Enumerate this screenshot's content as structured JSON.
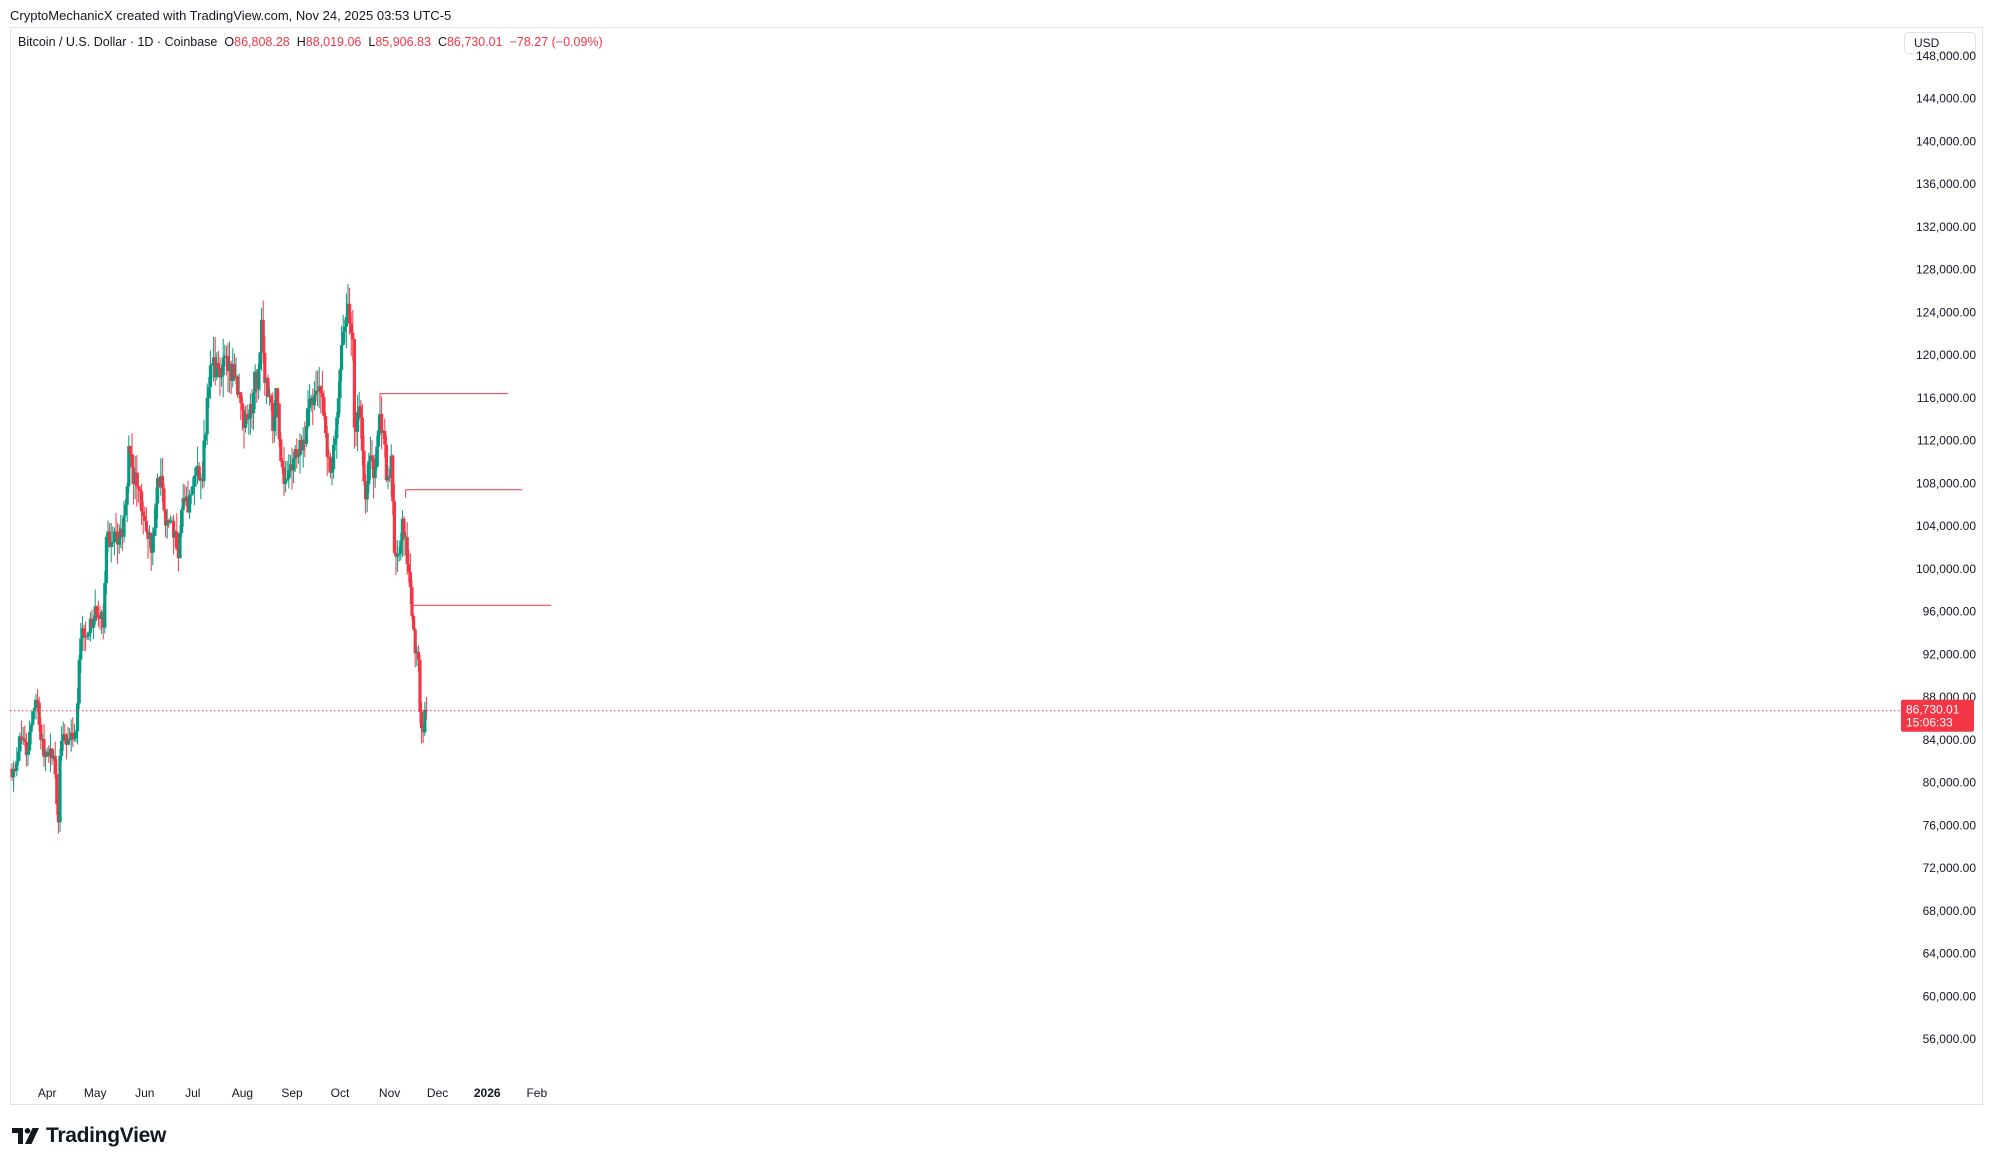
{
  "header": {
    "credit": "CryptoMechanicX created with TradingView.com, Nov 24, 2025 03:53 UTC-5"
  },
  "legend": {
    "symbol": "Bitcoin / U.S. Dollar · 1D · Coinbase",
    "open_label": "O",
    "open": "86,808.28",
    "high_label": "H",
    "high": "88,019.06",
    "low_label": "L",
    "low": "85,906.83",
    "close_label": "C",
    "close": "86,730.01",
    "change": "−78.27 (−0.09%)"
  },
  "currency": "USD",
  "brand": {
    "name": "TradingView"
  },
  "colors": {
    "up": "#089981",
    "down": "#f23645",
    "grid_border": "#e0e3eb",
    "text": "#131722"
  },
  "chart_data": {
    "type": "candlestick",
    "y_axis": {
      "ylim": [
        52000,
        150600
      ],
      "ticks": [
        148000,
        144000,
        140000,
        136000,
        132000,
        128000,
        124000,
        120000,
        116000,
        112000,
        108000,
        104000,
        100000,
        96000,
        92000,
        88000,
        84000,
        80000,
        76000,
        72000,
        68000,
        64000,
        60000,
        56000
      ],
      "tick_labels": [
        "148,000.00",
        "144,000.00",
        "140,000.00",
        "136,000.00",
        "132,000.00",
        "128,000.00",
        "124,000.00",
        "120,000.00",
        "116,000.00",
        "112,000.00",
        "108,000.00",
        "104,000.00",
        "100,000.00",
        "96,000.00",
        "92,000.00",
        "88,000.00",
        "84,000.00",
        "80,000.00",
        "76,000.00",
        "72,000.00",
        "68,000.00",
        "64,000.00",
        "60,000.00",
        "56,000.00"
      ]
    },
    "x_axis": {
      "start_date": "2025-03-10",
      "end_date": "2026-02-28",
      "ticks": [
        {
          "label": "Apr",
          "date": "2025-04-01",
          "bold": false
        },
        {
          "label": "May",
          "date": "2025-05-01",
          "bold": false
        },
        {
          "label": "Jun",
          "date": "2025-06-01",
          "bold": false
        },
        {
          "label": "Jul",
          "date": "2025-07-01",
          "bold": false
        },
        {
          "label": "Aug",
          "date": "2025-08-01",
          "bold": false
        },
        {
          "label": "Sep",
          "date": "2025-09-01",
          "bold": false
        },
        {
          "label": "Oct",
          "date": "2025-10-01",
          "bold": false
        },
        {
          "label": "Nov",
          "date": "2025-11-01",
          "bold": false
        },
        {
          "label": "Dec",
          "date": "2025-12-01",
          "bold": false
        },
        {
          "label": "2026",
          "date": "2026-01-01",
          "bold": true
        },
        {
          "label": "Feb",
          "date": "2026-02-01",
          "bold": false
        }
      ]
    },
    "anchors": [
      [
        "2025-03-10",
        80500
      ],
      [
        "2025-03-13",
        82000
      ],
      [
        "2025-03-16",
        84000
      ],
      [
        "2025-03-20",
        83000
      ],
      [
        "2025-03-24",
        87000
      ],
      [
        "2025-03-26",
        87500
      ],
      [
        "2025-03-28",
        84000
      ],
      [
        "2025-03-31",
        82500
      ],
      [
        "2025-04-03",
        83200
      ],
      [
        "2025-04-05",
        82500
      ],
      [
        "2025-04-07",
        78000
      ],
      [
        "2025-04-08",
        76300
      ],
      [
        "2025-04-09",
        82500
      ],
      [
        "2025-04-12",
        84500
      ],
      [
        "2025-04-15",
        84000
      ],
      [
        "2025-04-19",
        84800
      ],
      [
        "2025-04-22",
        93500
      ],
      [
        "2025-04-24",
        93700
      ],
      [
        "2025-04-27",
        94000
      ],
      [
        "2025-05-01",
        96500
      ],
      [
        "2025-05-06",
        94500
      ],
      [
        "2025-05-08",
        103000
      ],
      [
        "2025-05-12",
        102500
      ],
      [
        "2025-05-18",
        103000
      ],
      [
        "2025-05-20",
        106000
      ],
      [
        "2025-05-22",
        111500
      ],
      [
        "2025-05-24",
        109500
      ],
      [
        "2025-05-28",
        107500
      ],
      [
        "2025-06-01",
        104500
      ],
      [
        "2025-06-05",
        101500
      ],
      [
        "2025-06-09",
        108500
      ],
      [
        "2025-06-11",
        108700
      ],
      [
        "2025-06-13",
        105500
      ],
      [
        "2025-06-18",
        104500
      ],
      [
        "2025-06-22",
        101000
      ],
      [
        "2025-06-24",
        105500
      ],
      [
        "2025-06-30",
        107000
      ],
      [
        "2025-07-03",
        109500
      ],
      [
        "2025-07-07",
        108200
      ],
      [
        "2025-07-10",
        116000
      ],
      [
        "2025-07-14",
        119800
      ],
      [
        "2025-07-18",
        117900
      ],
      [
        "2025-07-22",
        119900
      ],
      [
        "2025-07-25",
        117600
      ],
      [
        "2025-07-28",
        118000
      ],
      [
        "2025-07-31",
        115500
      ],
      [
        "2025-08-02",
        113200
      ],
      [
        "2025-08-05",
        114100
      ],
      [
        "2025-08-08",
        116500
      ],
      [
        "2025-08-11",
        118700
      ],
      [
        "2025-08-13",
        123300
      ],
      [
        "2025-08-15",
        117400
      ],
      [
        "2025-08-18",
        116200
      ],
      [
        "2025-08-20",
        112900
      ],
      [
        "2025-08-22",
        116900
      ],
      [
        "2025-08-25",
        110100
      ],
      [
        "2025-08-29",
        108400
      ],
      [
        "2025-09-01",
        109200
      ],
      [
        "2025-09-05",
        110600
      ],
      [
        "2025-09-08",
        112100
      ],
      [
        "2025-09-12",
        115900
      ],
      [
        "2025-09-14",
        115300
      ],
      [
        "2025-09-18",
        117100
      ],
      [
        "2025-09-22",
        112700
      ],
      [
        "2025-09-25",
        109000
      ],
      [
        "2025-09-28",
        112200
      ],
      [
        "2025-10-01",
        118600
      ],
      [
        "2025-10-03",
        122200
      ],
      [
        "2025-10-06",
        124800
      ],
      [
        "2025-10-09",
        121500
      ],
      [
        "2025-10-10",
        113200
      ],
      [
        "2025-10-13",
        115200
      ],
      [
        "2025-10-16",
        108200
      ],
      [
        "2025-10-17",
        106500
      ],
      [
        "2025-10-20",
        110600
      ],
      [
        "2025-10-22",
        108500
      ],
      [
        "2025-10-26",
        114500
      ],
      [
        "2025-10-28",
        112900
      ],
      [
        "2025-10-30",
        108300
      ],
      [
        "2025-11-02",
        110600
      ],
      [
        "2025-11-04",
        101500
      ],
      [
        "2025-11-06",
        101300
      ],
      [
        "2025-11-09",
        104700
      ],
      [
        "2025-11-11",
        103000
      ],
      [
        "2025-11-13",
        99700
      ],
      [
        "2025-11-15",
        95600
      ],
      [
        "2025-11-17",
        92100
      ],
      [
        "2025-11-19",
        91500
      ],
      [
        "2025-11-20",
        86600
      ],
      [
        "2025-11-21",
        85100
      ],
      [
        "2025-11-22",
        84700
      ],
      [
        "2025-11-23",
        86808
      ],
      [
        "2025-11-24",
        86730
      ]
    ],
    "last_candle": {
      "date": "2025-11-24",
      "open": 86808.28,
      "high": 88019.06,
      "low": 85906.83,
      "close": 86730.01
    },
    "price_line": {
      "value": 86730.01,
      "label": "86,730.01",
      "countdown": "15:06:33"
    },
    "levels": [
      {
        "value": 116400,
        "from_date": "2025-10-26",
        "to_date": "2026-01-14"
      },
      {
        "value": 107400,
        "from_date": "2025-11-11",
        "to_date": "2026-01-23"
      },
      {
        "value": 96600,
        "from_date": "2025-11-15",
        "to_date": "2026-02-10"
      }
    ]
  }
}
